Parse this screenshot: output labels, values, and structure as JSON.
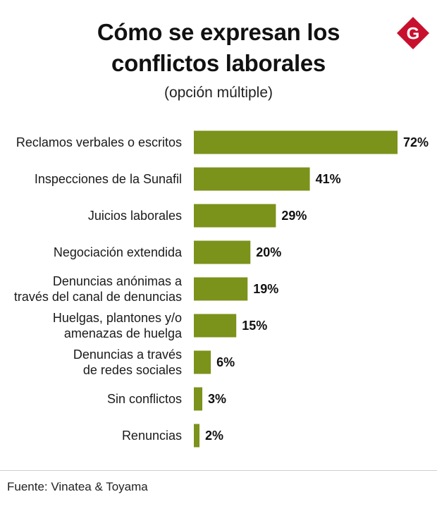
{
  "header": {
    "title_line1": "Cómo se expresan los",
    "title_line2": "conflictos laborales",
    "subtitle": "(opción múltiple)",
    "logo_letter": "G"
  },
  "footer": {
    "source": "Fuente: Vinatea & Toyama"
  },
  "colors": {
    "bar": "#7b921b",
    "logo_red": "#c8102e"
  },
  "chart_data": {
    "type": "bar",
    "orientation": "horizontal",
    "categories": [
      [
        "Reclamos verbales o escritos"
      ],
      [
        "Inspecciones de la Sunafil"
      ],
      [
        "Juicios laborales"
      ],
      [
        "Negociación extendida"
      ],
      [
        "Denuncias anónimas a",
        "través del canal de denuncias"
      ],
      [
        "Huelgas, plantones y/o",
        "amenazas de huelga"
      ],
      [
        "Denuncias a través",
        "de redes sociales"
      ],
      [
        "Sin conflictos"
      ],
      [
        "Renuncias"
      ]
    ],
    "values": [
      72,
      41,
      29,
      20,
      19,
      15,
      6,
      3,
      2
    ],
    "value_labels": [
      "72%",
      "41%",
      "29%",
      "20%",
      "19%",
      "15%",
      "6%",
      "3%",
      "2%"
    ],
    "unit": "%",
    "title": "Cómo se expresan los conflictos laborales",
    "subtitle": "(opción múltiple)",
    "xlabel": "",
    "ylabel": "",
    "xlim": [
      0,
      72
    ],
    "grid": false,
    "legend": "none"
  }
}
